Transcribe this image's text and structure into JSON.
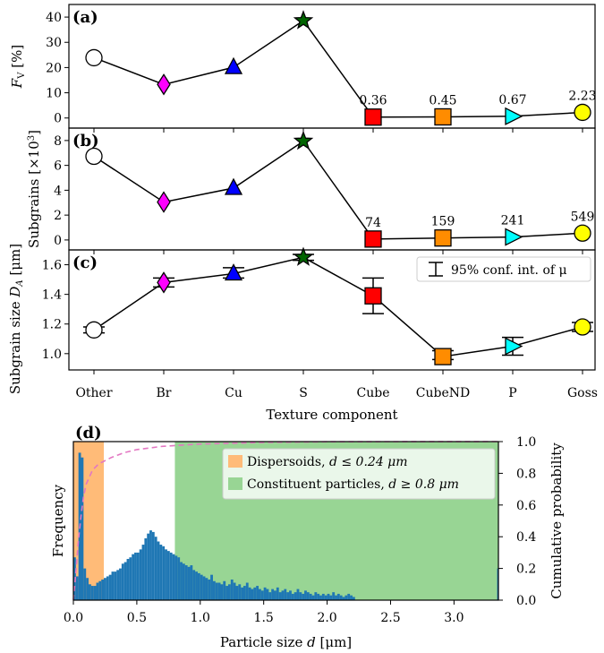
{
  "colors": {
    "Other": "#ffffff",
    "Br": "#ff00ff",
    "Cu": "#0000ff",
    "S": "#006400",
    "Cube": "#ff0000",
    "CubeND": "#ff8c00",
    "P": "#00ffff",
    "Goss": "#ffff00",
    "hist": "#1f77b4",
    "cumulative": "#e377c2",
    "dispersoids": "#ffbb78",
    "constituent": "#98d594"
  },
  "chart_data": [
    {
      "panel": "(a)",
      "type": "line",
      "categories": [
        "Other",
        "Br",
        "Cu",
        "S",
        "Cube",
        "CubeND",
        "P",
        "Goss"
      ],
      "markers": [
        "circle",
        "diamond",
        "triangle-up",
        "star",
        "square",
        "square",
        "triangle-right",
        "circle"
      ],
      "values": [
        23.9,
        13.3,
        20.1,
        38.6,
        0.36,
        0.45,
        0.67,
        2.23
      ],
      "labels": [
        "",
        "",
        "",
        "",
        "0.36",
        "0.45",
        "0.67",
        "2.23"
      ],
      "ylabel": "F_V [%]",
      "yticks": [
        "0",
        "10",
        "20",
        "30",
        "40"
      ],
      "ylim": [
        -4,
        45
      ]
    },
    {
      "panel": "(b)",
      "type": "line",
      "categories": [
        "Other",
        "Br",
        "Cu",
        "S",
        "Cube",
        "CubeND",
        "P",
        "Goss"
      ],
      "markers": [
        "circle",
        "diamond",
        "triangle-up",
        "star",
        "square",
        "square",
        "triangle-right",
        "circle"
      ],
      "values": [
        6.73,
        3.05,
        4.17,
        7.95,
        0.074,
        0.159,
        0.241,
        0.549
      ],
      "labels": [
        "",
        "",
        "",
        "",
        "74",
        "159",
        "241",
        "549"
      ],
      "ylabel": "Subgrains [×10³]",
      "yticks": [
        "0",
        "2",
        "4",
        "6",
        "8"
      ],
      "ylim": [
        -0.8,
        9.0
      ]
    },
    {
      "panel": "(c)",
      "type": "line",
      "categories": [
        "Other",
        "Br",
        "Cu",
        "S",
        "Cube",
        "CubeND",
        "P",
        "Goss"
      ],
      "markers": [
        "circle",
        "diamond",
        "triangle-up",
        "star",
        "square",
        "square",
        "triangle-right",
        "circle"
      ],
      "values": [
        1.16,
        1.48,
        1.54,
        1.65,
        1.39,
        0.98,
        1.05,
        1.18
      ],
      "err_low": [
        1.14,
        1.45,
        1.51,
        1.63,
        1.27,
        0.96,
        0.99,
        1.15
      ],
      "err_high": [
        1.18,
        1.51,
        1.58,
        1.67,
        1.51,
        1.02,
        1.11,
        1.21
      ],
      "ylabel": "Subgrain size D_A [μm]",
      "yticks": [
        "1.0",
        "1.2",
        "1.4",
        "1.6"
      ],
      "ylim": [
        0.89,
        1.7
      ],
      "xlabel": "Texture component",
      "legend": "95% conf. int. of μ"
    },
    {
      "panel": "(d)",
      "type": "bar",
      "x_start": 0.0,
      "bin_width": 0.02,
      "values_freq_scaled": [
        0.27,
        0.15,
        0.93,
        0.9,
        0.2,
        0.14,
        0.1,
        0.09,
        0.09,
        0.11,
        0.12,
        0.13,
        0.14,
        0.15,
        0.16,
        0.18,
        0.18,
        0.19,
        0.2,
        0.23,
        0.24,
        0.26,
        0.27,
        0.29,
        0.3,
        0.3,
        0.32,
        0.35,
        0.39,
        0.42,
        0.44,
        0.43,
        0.4,
        0.37,
        0.35,
        0.34,
        0.32,
        0.31,
        0.3,
        0.29,
        0.28,
        0.27,
        0.24,
        0.23,
        0.22,
        0.21,
        0.22,
        0.19,
        0.18,
        0.17,
        0.16,
        0.15,
        0.14,
        0.13,
        0.16,
        0.12,
        0.11,
        0.11,
        0.1,
        0.12,
        0.09,
        0.1,
        0.13,
        0.11,
        0.09,
        0.1,
        0.08,
        0.09,
        0.11,
        0.08,
        0.07,
        0.08,
        0.09,
        0.07,
        0.06,
        0.08,
        0.07,
        0.05,
        0.07,
        0.06,
        0.08,
        0.05,
        0.06,
        0.07,
        0.05,
        0.06,
        0.04,
        0.05,
        0.07,
        0.05,
        0.04,
        0.06,
        0.05,
        0.04,
        0.03,
        0.05,
        0.04,
        0.03,
        0.04,
        0.03,
        0.04,
        0.03,
        0.05,
        0.03,
        0.04,
        0.03,
        0.02,
        0.03,
        0.04,
        0.03,
        0.02
      ],
      "last_bin": {
        "x": 3.34,
        "value": 0.2
      },
      "cumulative": [
        [
          0.0,
          0.0
        ],
        [
          0.02,
          0.18
        ],
        [
          0.04,
          0.38
        ],
        [
          0.06,
          0.53
        ],
        [
          0.08,
          0.65
        ],
        [
          0.1,
          0.73
        ],
        [
          0.15,
          0.82
        ],
        [
          0.2,
          0.86
        ],
        [
          0.3,
          0.9
        ],
        [
          0.4,
          0.93
        ],
        [
          0.5,
          0.95
        ],
        [
          0.7,
          0.97
        ],
        [
          1.0,
          0.985
        ],
        [
          1.5,
          0.995
        ],
        [
          2.0,
          0.999
        ],
        [
          3.35,
          1.0
        ]
      ],
      "xlabel": "Particle size d [μm]",
      "ylabel_left": "Frequency",
      "ylabel_right": "Cumulative probability",
      "xticks": [
        "0.0",
        "0.5",
        "1.0",
        "1.5",
        "2.0",
        "2.5",
        "3.0"
      ],
      "yticks_right": [
        "0.0",
        "0.2",
        "0.4",
        "0.6",
        "0.8",
        "1.0"
      ],
      "xlim": [
        0.0,
        3.35
      ],
      "dispersoid_range": [
        0.0,
        0.24
      ],
      "constituent_range": [
        0.8,
        3.35
      ],
      "legend": [
        "Dispersoids, d ≤ 0.24 μm",
        "Constituent particles, d ≥ 0.8 μm"
      ]
    }
  ]
}
